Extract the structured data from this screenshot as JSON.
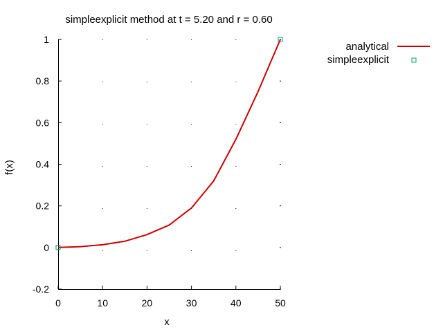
{
  "chart_data": {
    "type": "line",
    "title": "simpleexplicit method at t = 5.20 and r = 0.60",
    "xlabel": "x",
    "ylabel": "f(x)",
    "xlim": [
      0,
      50
    ],
    "ylim": [
      -0.2,
      1
    ],
    "xticks": [
      "0",
      "10",
      "20",
      "30",
      "40",
      "50"
    ],
    "yticks": [
      "-0.2",
      "0",
      "0.2",
      "0.4",
      "0.6",
      "0.8",
      "1"
    ],
    "grid": "dotted at tick positions",
    "legend_position": "outside right",
    "series": [
      {
        "name": "analytical",
        "style": "line",
        "color": "#cc0000",
        "x": [
          0,
          5,
          10,
          15,
          20,
          25,
          30,
          35,
          40,
          45,
          50
        ],
        "y": [
          0,
          0.004,
          0.013,
          0.03,
          0.062,
          0.108,
          0.19,
          0.32,
          0.52,
          0.75,
          1.0
        ]
      },
      {
        "name": "simpleexplicit",
        "style": "points",
        "marker": "open-square",
        "color": "#009e73",
        "x": [
          0,
          50
        ],
        "y": [
          0,
          1.0
        ]
      }
    ]
  }
}
